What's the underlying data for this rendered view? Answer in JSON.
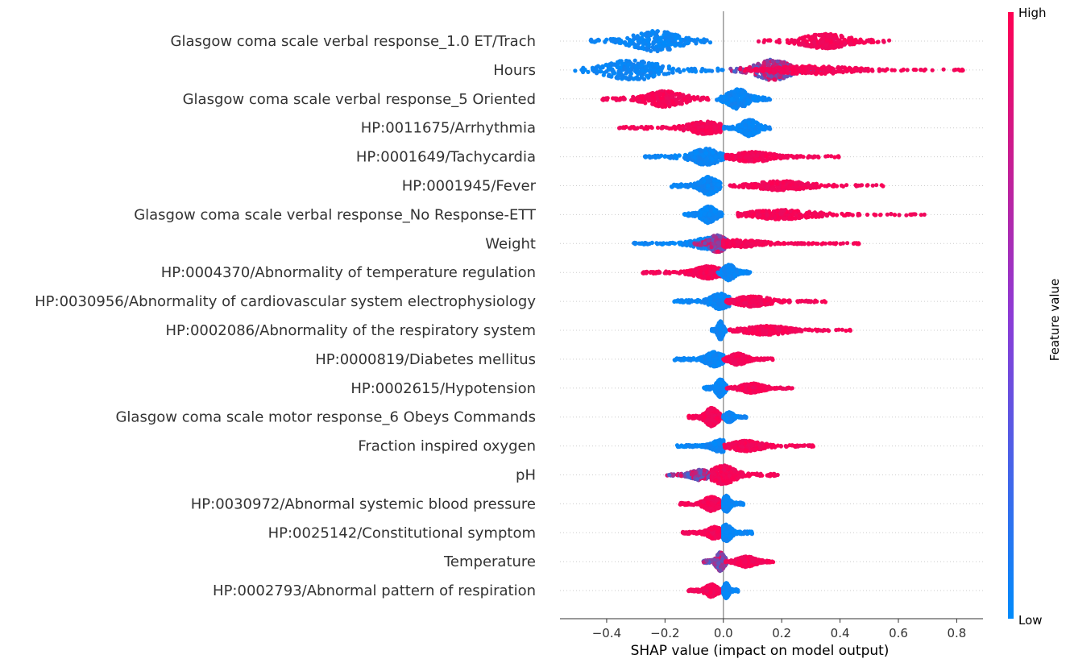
{
  "chart_data": {
    "type": "scatter",
    "subtype": "beeswarm",
    "title": "",
    "xlabel": "SHAP value (impact on model output)",
    "ylabel": "",
    "xlim": [
      -0.56,
      0.89
    ],
    "xticks": [
      -0.4,
      -0.2,
      0.0,
      0.2,
      0.4,
      0.6,
      0.8
    ],
    "xtick_labels": [
      "−0.4",
      "−0.2",
      "0.0",
      "0.2",
      "0.4",
      "0.6",
      "0.8"
    ],
    "grid": false,
    "colorbar": {
      "title": "Feature value",
      "high_label": "High",
      "low_label": "Low",
      "low_color": "#008bfb",
      "high_color": "#ff0052"
    },
    "features": [
      {
        "name": "Glasgow coma scale verbal response_1.0 ET/Trach",
        "clusters": [
          {
            "color": "low",
            "center": -0.23,
            "min": -0.46,
            "max": -0.02,
            "spread": 1.0
          },
          {
            "color": "high",
            "center": 0.35,
            "min": 0.12,
            "max": 0.57,
            "spread": 0.7
          }
        ]
      },
      {
        "name": "Hours",
        "clusters": [
          {
            "color": "low",
            "center": -0.31,
            "min": -0.51,
            "max": 0.0,
            "spread": 1.0
          },
          {
            "color": "mixed",
            "center": 0.17,
            "min": 0.02,
            "max": 0.35,
            "spread": 1.0
          },
          {
            "color": "high",
            "center": 0.3,
            "min": 0.05,
            "max": 0.83,
            "spread": 0.4
          }
        ]
      },
      {
        "name": "Glasgow coma scale verbal response_5 Oriented",
        "clusters": [
          {
            "color": "high",
            "center": -0.2,
            "min": -0.42,
            "max": -0.05,
            "spread": 0.75
          },
          {
            "color": "low",
            "center": 0.05,
            "min": -0.03,
            "max": 0.17,
            "spread": 0.95
          }
        ]
      },
      {
        "name": "HP:0011675/Arrhythmia",
        "clusters": [
          {
            "color": "high",
            "center": -0.06,
            "min": -0.36,
            "max": -0.01,
            "spread": 0.6
          },
          {
            "color": "low",
            "center": 0.09,
            "min": 0.0,
            "max": 0.16,
            "spread": 0.8
          }
        ]
      },
      {
        "name": "HP:0001649/Tachycardia",
        "clusters": [
          {
            "color": "low",
            "center": -0.06,
            "min": -0.27,
            "max": 0.0,
            "spread": 0.8
          },
          {
            "color": "high",
            "center": 0.1,
            "min": 0.01,
            "max": 0.4,
            "spread": 0.5
          }
        ]
      },
      {
        "name": "HP:0001945/Fever",
        "clusters": [
          {
            "color": "low",
            "center": -0.05,
            "min": -0.18,
            "max": -0.01,
            "spread": 0.85
          },
          {
            "color": "high",
            "center": 0.2,
            "min": 0.01,
            "max": 0.55,
            "spread": 0.45
          }
        ]
      },
      {
        "name": "Glasgow coma scale verbal response_No Response-ETT",
        "clusters": [
          {
            "color": "low",
            "center": -0.05,
            "min": -0.14,
            "max": 0.0,
            "spread": 0.8
          },
          {
            "color": "high",
            "center": 0.2,
            "min": 0.05,
            "max": 0.7,
            "spread": 0.45
          }
        ]
      },
      {
        "name": "Weight",
        "clusters": [
          {
            "color": "low",
            "center": -0.05,
            "min": -0.31,
            "max": 0.0,
            "spread": 0.55
          },
          {
            "color": "mixed",
            "center": -0.02,
            "min": -0.1,
            "max": 0.06,
            "spread": 0.85
          },
          {
            "color": "high",
            "center": 0.05,
            "min": 0.0,
            "max": 0.47,
            "spread": 0.35
          }
        ]
      },
      {
        "name": "HP:0004370/Abnormality of temperature regulation",
        "clusters": [
          {
            "color": "high",
            "center": -0.05,
            "min": -0.28,
            "max": 0.0,
            "spread": 0.6
          },
          {
            "color": "low",
            "center": 0.02,
            "min": -0.02,
            "max": 0.1,
            "spread": 0.75
          }
        ]
      },
      {
        "name": "HP:0030956/Abnormality of cardiovascular system electrophysiology",
        "clusters": [
          {
            "color": "low",
            "center": -0.01,
            "min": -0.17,
            "max": 0.02,
            "spread": 0.75
          },
          {
            "color": "high",
            "center": 0.1,
            "min": 0.01,
            "max": 0.35,
            "spread": 0.5
          }
        ]
      },
      {
        "name": "HP:0002086/Abnormality of the respiratory system",
        "clusters": [
          {
            "color": "low",
            "center": -0.01,
            "min": -0.04,
            "max": 0.01,
            "spread": 0.9
          },
          {
            "color": "high",
            "center": 0.15,
            "min": 0.02,
            "max": 0.44,
            "spread": 0.45
          }
        ]
      },
      {
        "name": "HP:0000819/Diabetes mellitus",
        "clusters": [
          {
            "color": "low",
            "center": -0.03,
            "min": -0.17,
            "max": 0.0,
            "spread": 0.7
          },
          {
            "color": "high",
            "center": 0.05,
            "min": 0.0,
            "max": 0.17,
            "spread": 0.55
          }
        ]
      },
      {
        "name": "HP:0002615/Hypotension",
        "clusters": [
          {
            "color": "low",
            "center": -0.01,
            "min": -0.07,
            "max": 0.01,
            "spread": 0.85
          },
          {
            "color": "high",
            "center": 0.1,
            "min": 0.01,
            "max": 0.24,
            "spread": 0.45
          }
        ]
      },
      {
        "name": "Glasgow coma scale motor response_6 Obeys Commands",
        "clusters": [
          {
            "color": "high",
            "center": -0.04,
            "min": -0.12,
            "max": 0.0,
            "spread": 0.9
          },
          {
            "color": "low",
            "center": 0.02,
            "min": 0.0,
            "max": 0.08,
            "spread": 0.5
          }
        ]
      },
      {
        "name": "Fraction inspired oxygen",
        "clusters": [
          {
            "color": "low",
            "center": -0.01,
            "min": -0.16,
            "max": 0.0,
            "spread": 0.6
          },
          {
            "color": "high",
            "center": 0.08,
            "min": 0.0,
            "max": 0.31,
            "spread": 0.5
          }
        ]
      },
      {
        "name": "pH",
        "clusters": [
          {
            "color": "mixed",
            "center": -0.08,
            "min": -0.2,
            "max": -0.01,
            "spread": 0.5
          },
          {
            "color": "high",
            "center": 0.0,
            "min": -0.04,
            "max": 0.19,
            "spread": 0.9
          }
        ]
      },
      {
        "name": "HP:0030972/Abnormal systemic blood pressure",
        "clusters": [
          {
            "color": "high",
            "center": -0.04,
            "min": -0.15,
            "max": 0.0,
            "spread": 0.7
          },
          {
            "color": "low",
            "center": 0.01,
            "min": 0.0,
            "max": 0.07,
            "spread": 0.8
          }
        ]
      },
      {
        "name": "HP:0025142/Constitutional symptom",
        "clusters": [
          {
            "color": "high",
            "center": -0.03,
            "min": -0.14,
            "max": 0.0,
            "spread": 0.6
          },
          {
            "color": "low",
            "center": 0.01,
            "min": 0.0,
            "max": 0.1,
            "spread": 0.8
          }
        ]
      },
      {
        "name": "Temperature",
        "clusters": [
          {
            "color": "mixed",
            "center": -0.01,
            "min": -0.07,
            "max": 0.01,
            "spread": 0.9
          },
          {
            "color": "high",
            "center": 0.08,
            "min": 0.0,
            "max": 0.18,
            "spread": 0.5
          }
        ]
      },
      {
        "name": "HP:0002793/Abnormal pattern of respiration",
        "clusters": [
          {
            "color": "high",
            "center": -0.04,
            "min": -0.12,
            "max": 0.0,
            "spread": 0.6
          },
          {
            "color": "low",
            "center": 0.01,
            "min": 0.0,
            "max": 0.05,
            "spread": 0.75
          }
        ]
      }
    ]
  }
}
